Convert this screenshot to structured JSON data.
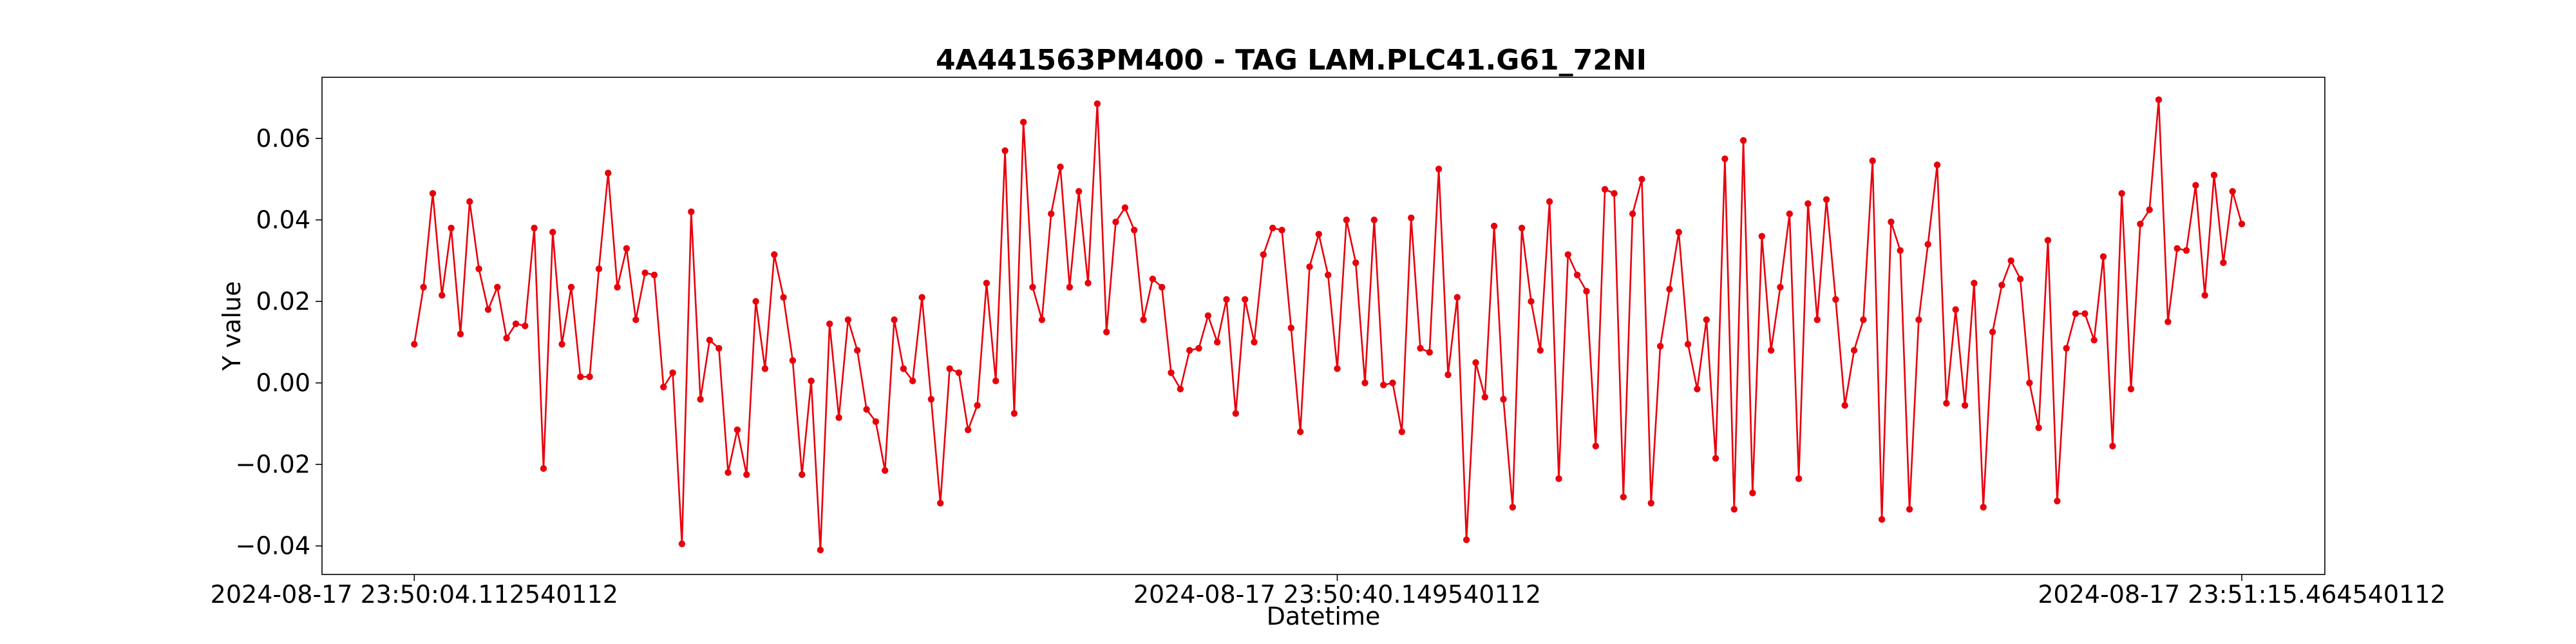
{
  "chart_data": {
    "type": "line",
    "title": "4A441563PM400 - TAG LAM.PLC41.G61_72NI",
    "xlabel": "Datetime",
    "ylabel": "Y value",
    "x_tick_labels": [
      "2024-08-17 23:50:04.112540112",
      "2024-08-17 23:50:40.149540112",
      "2024-08-17 23:51:15.464540112"
    ],
    "x_tick_positions": [
      0,
      100,
      198
    ],
    "y_ticks": [
      -0.04,
      -0.02,
      0.0,
      0.02,
      0.04,
      0.06
    ],
    "y_tick_labels": [
      "−0.04",
      "−0.02",
      "0.00",
      "0.02",
      "0.04",
      "0.06"
    ],
    "ylim": [
      -0.047,
      0.075
    ],
    "xlim": [
      -10,
      207
    ],
    "grid": false,
    "series": [
      {
        "color": "#e8000b",
        "marker": "circle",
        "values": [
          0.0095,
          0.0235,
          0.0465,
          0.0215,
          0.038,
          0.012,
          0.0445,
          0.028,
          0.018,
          0.0235,
          0.011,
          0.0145,
          0.014,
          0.038,
          -0.021,
          0.037,
          0.0095,
          0.0235,
          0.0015,
          0.0015,
          0.028,
          0.0515,
          0.0235,
          0.033,
          0.0155,
          0.027,
          0.0265,
          -0.001,
          0.0025,
          -0.0395,
          0.042,
          -0.004,
          0.0105,
          0.0085,
          -0.022,
          -0.0115,
          -0.0225,
          0.02,
          0.0035,
          0.0315,
          0.021,
          0.0055,
          -0.0225,
          0.0005,
          -0.041,
          0.0145,
          -0.0085,
          0.0155,
          0.008,
          -0.0065,
          -0.0095,
          -0.0215,
          0.0155,
          0.0035,
          0.0005,
          0.021,
          -0.004,
          -0.0295,
          0.0035,
          0.0025,
          -0.0115,
          -0.0055,
          0.0245,
          0.0005,
          0.057,
          -0.0075,
          0.064,
          0.0235,
          0.0155,
          0.0415,
          0.053,
          0.0235,
          0.047,
          0.0245,
          0.0685,
          0.0125,
          0.0395,
          0.043,
          0.0375,
          0.0155,
          0.0255,
          0.0235,
          0.0025,
          -0.0015,
          0.008,
          0.0085,
          0.0165,
          0.01,
          0.0205,
          -0.0075,
          0.0205,
          0.01,
          0.0315,
          0.038,
          0.0375,
          0.0135,
          -0.012,
          0.0285,
          0.0365,
          0.0265,
          0.0035,
          0.04,
          0.0295,
          0.0,
          0.04,
          -0.0005,
          0.0,
          -0.012,
          0.0405,
          0.0085,
          0.0075,
          0.0525,
          0.002,
          0.021,
          -0.0385,
          0.005,
          -0.0035,
          0.0385,
          -0.004,
          -0.0305,
          0.038,
          0.02,
          0.008,
          0.0445,
          -0.0235,
          0.0315,
          0.0265,
          0.0225,
          -0.0155,
          0.0475,
          0.0465,
          -0.028,
          0.0415,
          0.05,
          -0.0295,
          0.009,
          0.023,
          0.037,
          0.0095,
          -0.0015,
          0.0155,
          -0.0185,
          0.055,
          -0.031,
          0.0595,
          -0.027,
          0.036,
          0.008,
          0.0235,
          0.0415,
          -0.0235,
          0.044,
          0.0155,
          0.045,
          0.0205,
          -0.0055,
          0.008,
          0.0155,
          0.0545,
          -0.0335,
          0.0395,
          0.0325,
          -0.031,
          0.0155,
          0.034,
          0.0535,
          -0.005,
          0.018,
          -0.0055,
          0.0245,
          -0.0305,
          0.0125,
          0.024,
          0.03,
          0.0255,
          0.0,
          -0.011,
          0.035,
          -0.029,
          0.0085,
          0.017,
          0.017,
          0.0105,
          0.031,
          -0.0155,
          0.0465,
          -0.0015,
          0.039,
          0.0425,
          0.0695,
          0.015,
          0.033,
          0.0325,
          0.0485,
          0.0215,
          0.051,
          0.0295,
          0.047,
          0.039
        ]
      }
    ]
  }
}
